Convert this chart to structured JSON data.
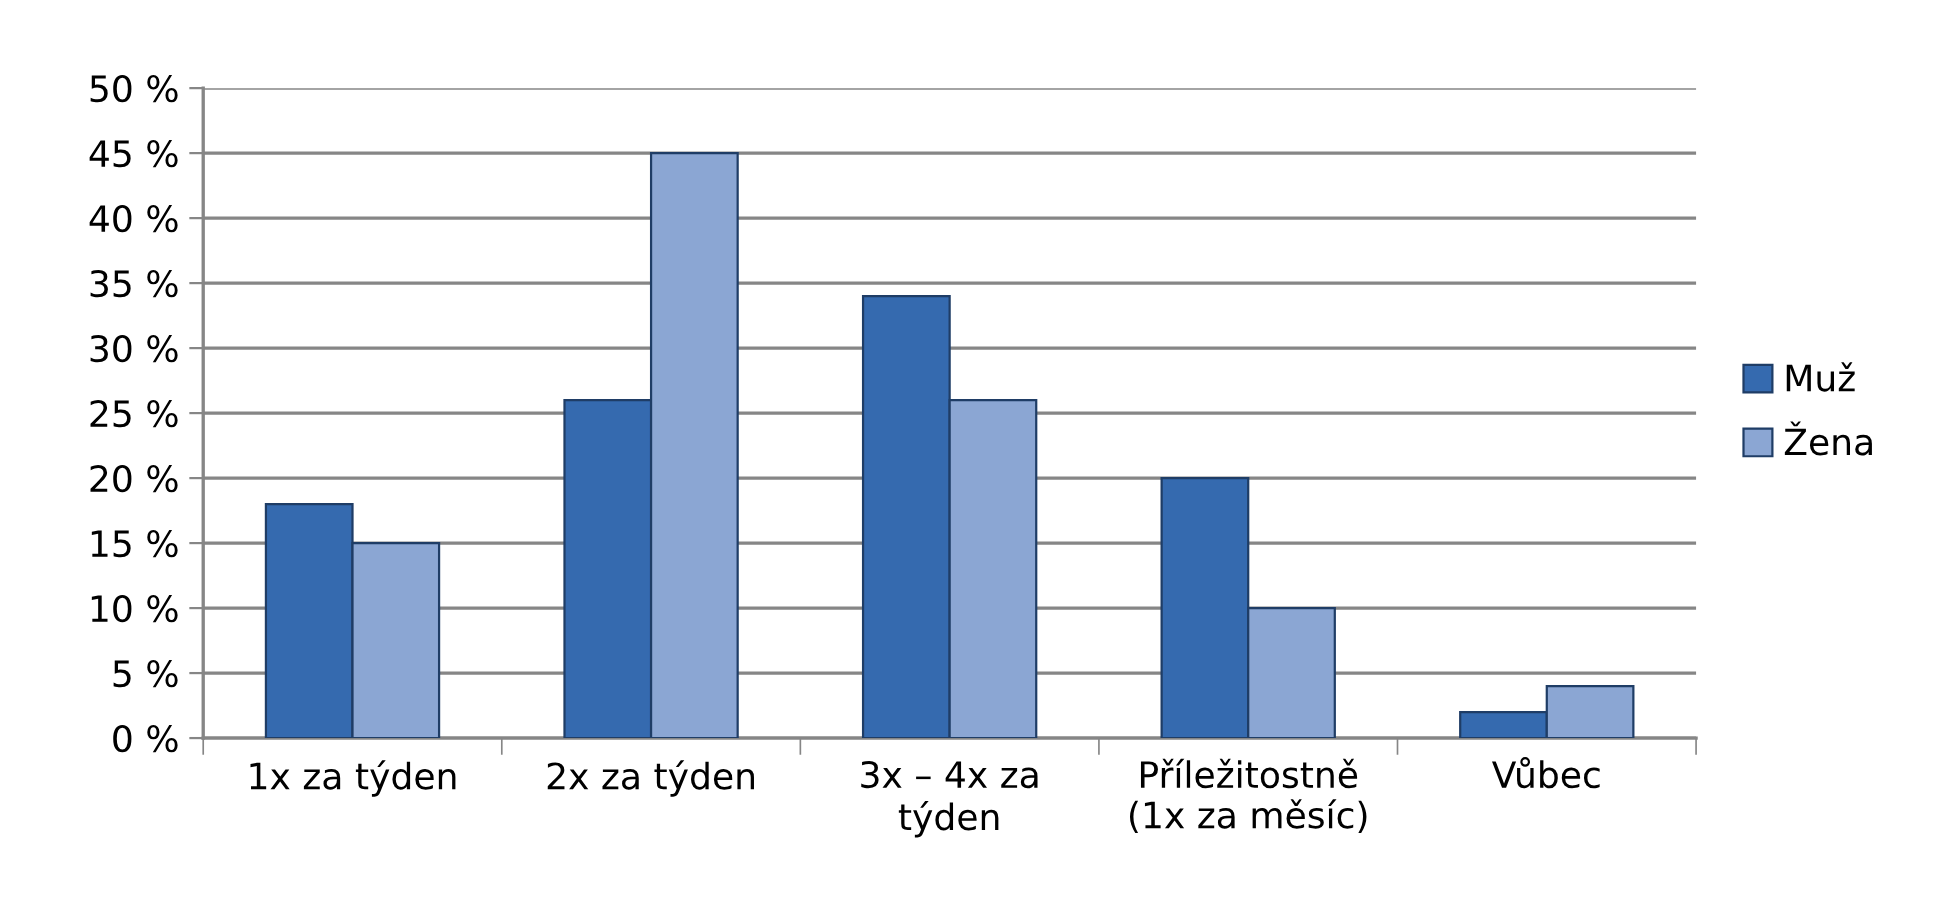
{
  "chart_data": {
    "type": "bar",
    "categories": [
      "1x za týden",
      "2x za týden",
      "3x – 4x za\ntýden",
      "Příležitostně\n(1x za měsíc)",
      "Vůbec"
    ],
    "series": [
      {
        "name": "Muž",
        "color": "#356aaf",
        "values": [
          18,
          26,
          34,
          20,
          2
        ]
      },
      {
        "name": "Žena",
        "color": "#8ba6d3",
        "values": [
          15,
          45,
          26,
          10,
          4
        ]
      }
    ],
    "ylim": [
      0,
      50
    ],
    "yticks": [
      {
        "value": 0,
        "label": "0 %"
      },
      {
        "value": 5,
        "label": "5 %"
      },
      {
        "value": 10,
        "label": "10 %"
      },
      {
        "value": 15,
        "label": "15 %"
      },
      {
        "value": 20,
        "label": "20 %"
      },
      {
        "value": 25,
        "label": "25 %"
      },
      {
        "value": 30,
        "label": "30 %"
      },
      {
        "value": 35,
        "label": "35 %"
      },
      {
        "value": 40,
        "label": "40 %"
      },
      {
        "value": 45,
        "label": "45 %"
      },
      {
        "value": 50,
        "label": "50 %"
      }
    ],
    "grid": "y",
    "legend": "right"
  }
}
